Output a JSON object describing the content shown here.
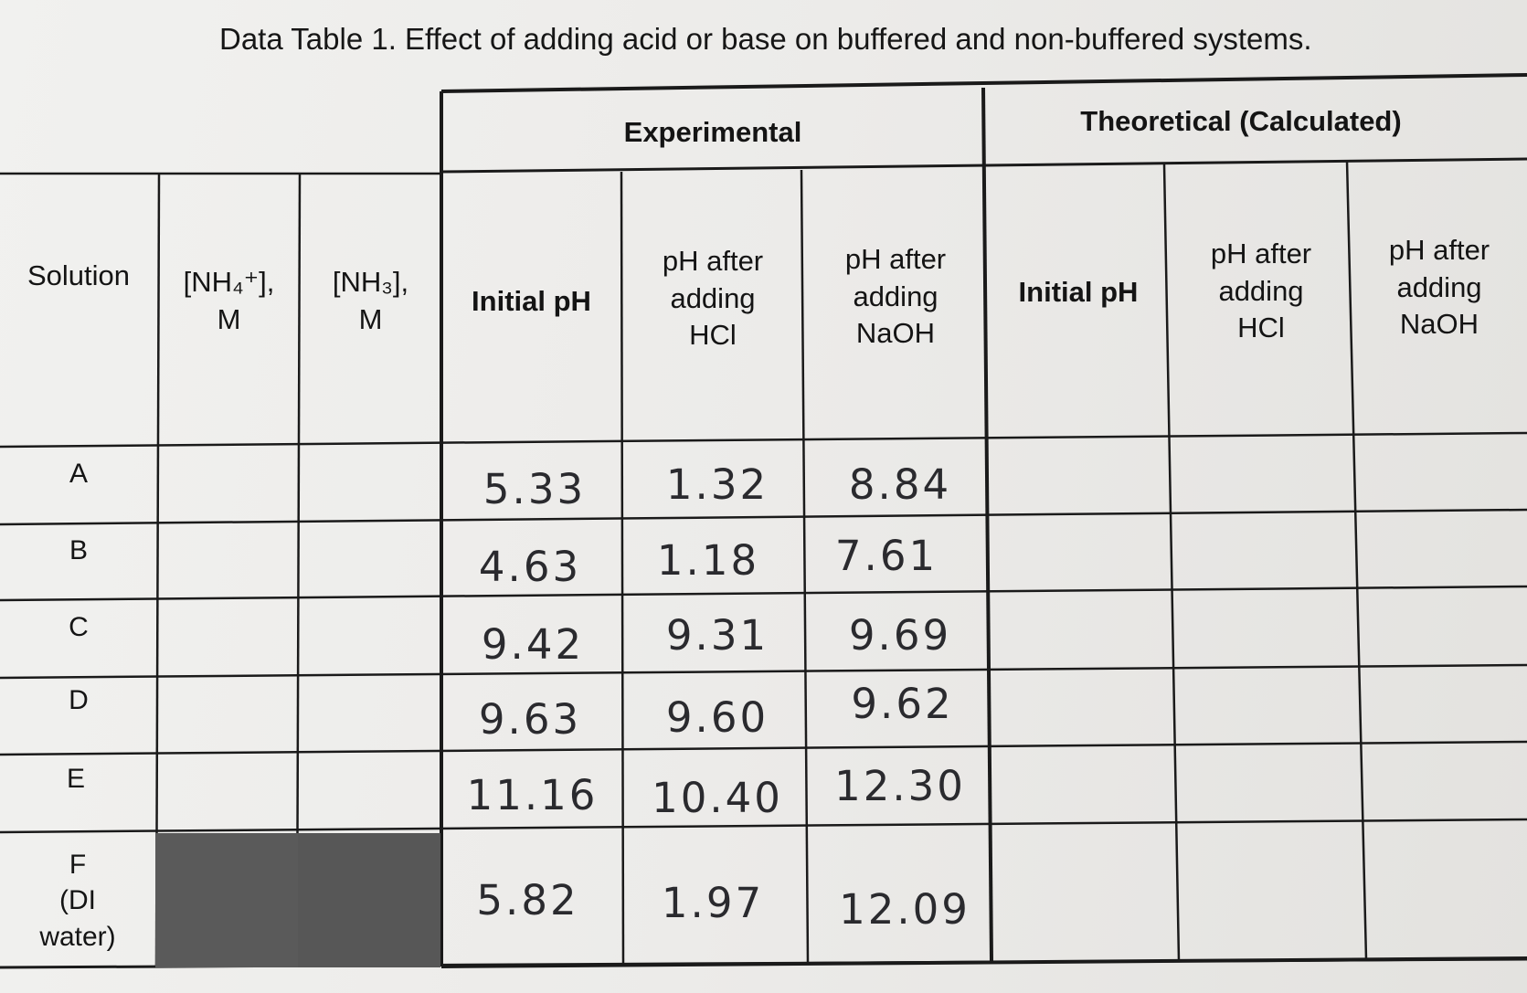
{
  "title": "Data Table 1. Effect of adding acid or base on buffered and non-buffered systems.",
  "groups": {
    "experimental": "Experimental",
    "theoretical": "Theoretical (Calculated)"
  },
  "headers": {
    "solution": "Solution",
    "nh4": "[NH₄⁺],\nM",
    "nh3": "[NH₃],\nM",
    "exp_initial": "Initial pH",
    "exp_hcl": "pH after\nadding\nHCl",
    "exp_naoh": "pH  after\nadding\nNaOH",
    "theo_initial": "Initial pH",
    "theo_hcl": "pH after\nadding\nHCl",
    "theo_naoh": "pH  after\nadding\nNaOH"
  },
  "rows": [
    {
      "solution": "A",
      "exp_initial": "5.33",
      "exp_hcl": "1.32",
      "exp_naoh": "8.84"
    },
    {
      "solution": "B",
      "exp_initial": "4.63",
      "exp_hcl": "1.18",
      "exp_naoh": "7.61"
    },
    {
      "solution": "C",
      "exp_initial": "9.42",
      "exp_hcl": "9.31",
      "exp_naoh": "9.69"
    },
    {
      "solution": "D",
      "exp_initial": "9.63",
      "exp_hcl": "9.60",
      "exp_naoh": "9.62"
    },
    {
      "solution": "E",
      "exp_initial": "11.16",
      "exp_hcl": "10.40",
      "exp_naoh": "12.30"
    },
    {
      "solution": "F\n(DI\nwater)",
      "exp_initial": "5.82",
      "exp_hcl": "1.97",
      "exp_naoh": "12.09"
    }
  ]
}
